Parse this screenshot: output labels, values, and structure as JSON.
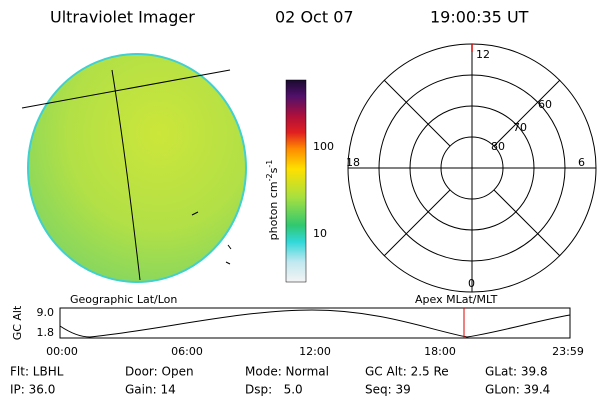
{
  "header": {
    "title": "Ultraviolet Imager",
    "date": "02 Oct 07",
    "time": "19:00:35 UT"
  },
  "colorbar": {
    "label": {
      "unit1": "photon cm",
      "exp1": "-2",
      "unit2": "s",
      "exp2": "-1"
    },
    "ticks": [
      "100",
      "10"
    ]
  },
  "polar": {
    "hour_labels": [
      "12",
      "18",
      "6",
      "0"
    ],
    "lat_labels": [
      "60",
      "70",
      "80"
    ]
  },
  "captions": {
    "left": "Geographic Lat/Lon",
    "right": "Apex MLat/MLT"
  },
  "altitude_plot": {
    "ylabel": "GC Alt",
    "yticks": [
      "9.0",
      "1.8"
    ],
    "xticks": [
      "00:00",
      "06:00",
      "12:00",
      "18:00",
      "23:59"
    ]
  },
  "info": {
    "rows": [
      [
        "Flt: LBHL",
        "Door: Open",
        "Mode: Normal",
        "GC Alt: 2.5 Re",
        "GLat: 39.8"
      ],
      [
        "IP: 36.0",
        "Gain: 14",
        "Dsp:   5.0",
        "Seq: 39",
        "GLon: 39.4"
      ]
    ]
  }
}
